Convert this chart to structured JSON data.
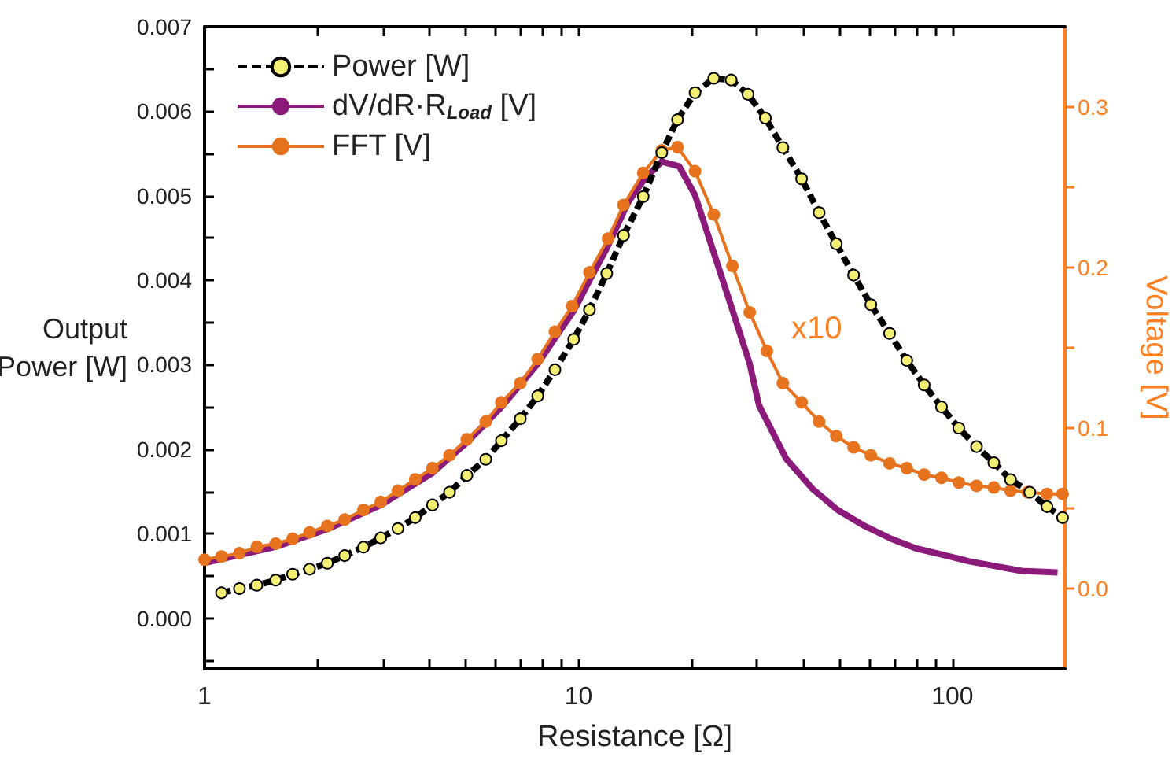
{
  "chart_data": {
    "type": "line",
    "xlabel": "Resistance [Ω]",
    "ylabel": "Output Power [W]",
    "y2label": "Voltage [V]",
    "log": "x",
    "grid": false,
    "legend": "top left",
    "annotations": [
      "x10"
    ],
    "xlim": [
      1,
      200
    ],
    "xticks": [
      1,
      {
        "value": 2,
        "label": null
      },
      {
        "value": 3,
        "label": null
      },
      {
        "value": 4,
        "label": null
      },
      {
        "value": 5,
        "label": null
      },
      {
        "value": 6,
        "label": null
      },
      {
        "value": 7,
        "label": null
      },
      {
        "value": 8,
        "label": null
      },
      {
        "value": 9,
        "label": null
      },
      10,
      {
        "value": 20,
        "label": null
      },
      {
        "value": 30,
        "label": null
      },
      {
        "value": 40,
        "label": null
      },
      {
        "value": 50,
        "label": null
      },
      {
        "value": 60,
        "label": null
      },
      {
        "value": 70,
        "label": null
      },
      {
        "value": 80,
        "label": null
      },
      {
        "value": 90,
        "label": null
      },
      100
    ],
    "ylim": [
      -0.0006,
      0.007
    ],
    "yticks": [
      {
        "value": -0.0005,
        "label": null
      },
      {
        "value": 0,
        "label": "0.000"
      },
      {
        "value": 0.0005,
        "label": null
      },
      0.001,
      {
        "value": 0.0015,
        "label": null
      },
      0.002,
      {
        "value": 0.0025,
        "label": null
      },
      0.003,
      {
        "value": 0.0035,
        "label": null
      },
      0.004,
      {
        "value": 0.0045,
        "label": null
      },
      0.005,
      {
        "value": 0.0055,
        "label": null
      },
      0.006,
      {
        "value": 0.0065,
        "label": null
      },
      0.007
    ],
    "y2lim": [
      -0.05,
      0.35
    ],
    "y2ticks": [
      {
        "value": 0,
        "label": "0.0"
      },
      {
        "value": 0.05,
        "label": null
      },
      0.1,
      {
        "value": 0.15,
        "label": null
      },
      0.2,
      {
        "value": 0.25,
        "label": null
      },
      0.3
    ],
    "series": [
      {
        "name": "Power [W]",
        "color": "#000000",
        "marker": "circle",
        "line_style": "dashed",
        "x": [
          1.11,
          1.24,
          1.38,
          1.55,
          1.72,
          1.91,
          2.13,
          2.37,
          2.66,
          2.96,
          3.29,
          3.66,
          4.07,
          4.52,
          5.03,
          5.65,
          6.22,
          6.99,
          7.78,
          8.65,
          9.71,
          10.7,
          11.9,
          13.2,
          14.9,
          16.7,
          18.4,
          20.5,
          23.0,
          25.6,
          28.4,
          31.6,
          35.2,
          39.5,
          44.0,
          48.9,
          54.4,
          60.5,
          67.9,
          75.5,
          84.0,
          93.5,
          104,
          116,
          129,
          143,
          161,
          179,
          197
        ],
        "values": [
          0.0003,
          0.00035,
          0.00039,
          0.00045,
          0.00052,
          0.00058,
          0.00065,
          0.00074,
          0.00084,
          0.00095,
          0.00106,
          0.00119,
          0.00134,
          0.00149,
          0.00169,
          0.00188,
          0.0021,
          0.00236,
          0.00263,
          0.00294,
          0.0033,
          0.00365,
          0.00408,
          0.00453,
          0.00499,
          0.00551,
          0.0059,
          0.00622,
          0.00639,
          0.00637,
          0.0062,
          0.00592,
          0.00557,
          0.0052,
          0.0048,
          0.00443,
          0.00406,
          0.00371,
          0.00337,
          0.00305,
          0.00276,
          0.0025,
          0.00225,
          0.00203,
          0.00184,
          0.00164,
          0.00149,
          0.00132,
          0.00119
        ]
      },
      {
        "name": "dV/dR·R$_{Load}$ [V]",
        "color": "#8b1a7a",
        "axis": "y2",
        "marker": "none",
        "line_style": "solid",
        "x": [
          1,
          1.55,
          2.13,
          2.96,
          4.07,
          5.03,
          6.22,
          7.78,
          8.65,
          9.71,
          10.7,
          11.9,
          13.6,
          15.0,
          16.7,
          18.6,
          20.5,
          22.8,
          25.6,
          28.7,
          30.4,
          35.9,
          42.3,
          49.3,
          58.2,
          68.6,
          80.0,
          94.4,
          111,
          130,
          153,
          191
        ],
        "values": [
          0.016,
          0.026,
          0.037,
          0.052,
          0.072,
          0.091,
          0.113,
          0.14,
          0.156,
          0.173,
          0.192,
          0.212,
          0.241,
          0.255,
          0.266,
          0.263,
          0.245,
          0.212,
          0.176,
          0.14,
          0.114,
          0.081,
          0.062,
          0.049,
          0.039,
          0.031,
          0.025,
          0.021,
          0.017,
          0.014,
          0.011,
          0.01
        ]
      },
      {
        "name": "FFT [V]",
        "color": "#e8731f",
        "axis": "y2",
        "marker": "circle",
        "line_style": "solid",
        "x": [
          1,
          1.11,
          1.24,
          1.38,
          1.55,
          1.72,
          1.91,
          2.13,
          2.37,
          2.66,
          2.96,
          3.29,
          3.66,
          4.07,
          4.52,
          5.03,
          5.65,
          6.22,
          6.99,
          7.78,
          8.65,
          9.62,
          10.7,
          12.0,
          13.2,
          14.9,
          16.7,
          18.4,
          20.5,
          23.0,
          25.8,
          28.7,
          31.9,
          35.2,
          39.5,
          44.0,
          48.9,
          54.4,
          60.5,
          67.9,
          75.5,
          84.0,
          93.5,
          104,
          116,
          129,
          143,
          159,
          179,
          197
        ],
        "values": [
          0.018,
          0.02,
          0.022,
          0.026,
          0.028,
          0.031,
          0.035,
          0.039,
          0.043,
          0.049,
          0.054,
          0.061,
          0.068,
          0.075,
          0.083,
          0.093,
          0.104,
          0.116,
          0.128,
          0.143,
          0.16,
          0.176,
          0.197,
          0.218,
          0.239,
          0.259,
          0.273,
          0.275,
          0.26,
          0.233,
          0.201,
          0.172,
          0.148,
          0.128,
          0.116,
          0.104,
          0.095,
          0.088,
          0.083,
          0.078,
          0.075,
          0.071,
          0.069,
          0.066,
          0.064,
          0.063,
          0.061,
          0.06,
          0.059,
          0.059
        ]
      }
    ]
  }
}
